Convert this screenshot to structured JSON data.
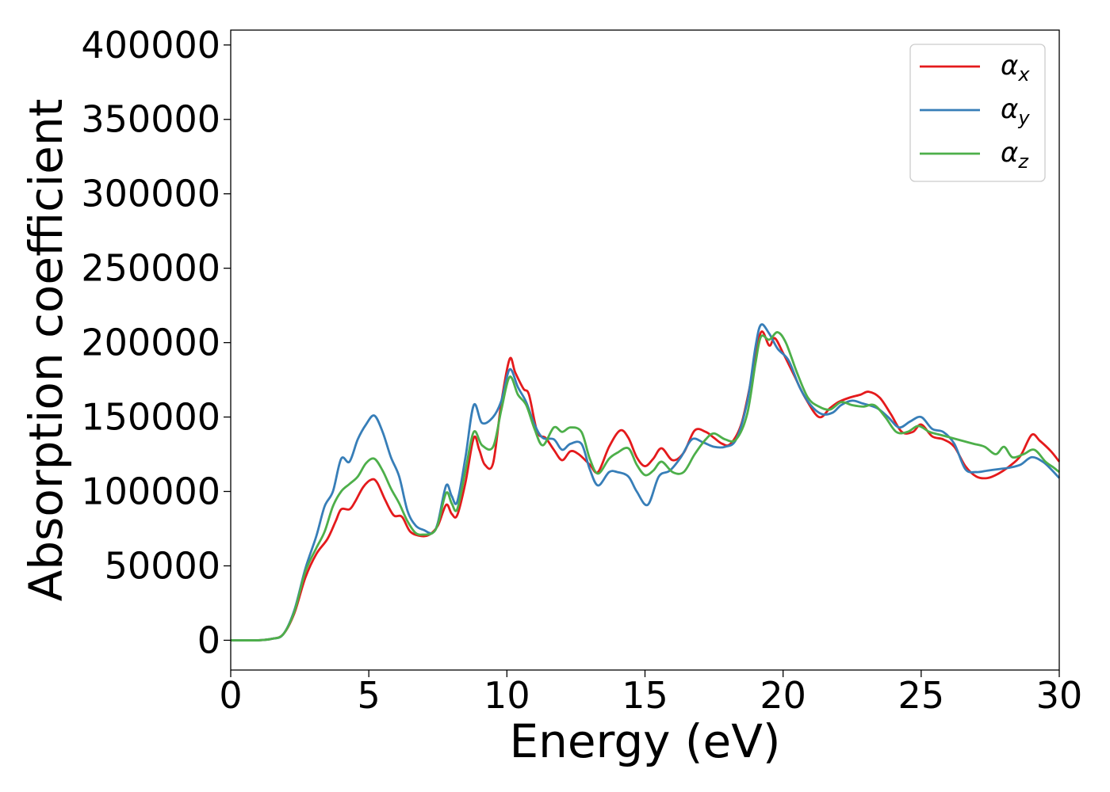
{
  "chart_data": {
    "type": "line",
    "title": "",
    "xlabel": "Energy (eV)",
    "ylabel": "Absorption coefficient",
    "xlim": [
      0,
      30
    ],
    "ylim": [
      -20000,
      410000
    ],
    "xticks": [
      0,
      5,
      10,
      15,
      20,
      25,
      30
    ],
    "xtick_labels": [
      "0",
      "5",
      "10",
      "15",
      "20",
      "25",
      "30"
    ],
    "yticks": [
      0,
      50000,
      100000,
      150000,
      200000,
      250000,
      300000,
      350000,
      400000
    ],
    "ytick_labels": [
      "0",
      "50000",
      "100000",
      "150000",
      "200000",
      "250000",
      "300000",
      "350000",
      "400000"
    ],
    "grid": false,
    "legend_position": "top-right",
    "series": [
      {
        "name": "αx",
        "base": "α",
        "sub": "x",
        "color": "#e41a1c",
        "points": [
          [
            0,
            0
          ],
          [
            1,
            0
          ],
          [
            1.5,
            1000
          ],
          [
            1.9,
            4000
          ],
          [
            2.3,
            18000
          ],
          [
            2.7,
            42000
          ],
          [
            3.1,
            58000
          ],
          [
            3.5,
            68000
          ],
          [
            3.8,
            80000
          ],
          [
            4.0,
            88000
          ],
          [
            4.3,
            88000
          ],
          [
            4.5,
            93000
          ],
          [
            4.8,
            103000
          ],
          [
            5.1,
            108000
          ],
          [
            5.3,
            106000
          ],
          [
            5.6,
            94000
          ],
          [
            5.9,
            84000
          ],
          [
            6.2,
            83000
          ],
          [
            6.5,
            73000
          ],
          [
            6.9,
            70000
          ],
          [
            7.2,
            71000
          ],
          [
            7.5,
            77000
          ],
          [
            7.8,
            91000
          ],
          [
            8.0,
            85000
          ],
          [
            8.2,
            84000
          ],
          [
            8.5,
            106000
          ],
          [
            8.8,
            136000
          ],
          [
            9.0,
            128000
          ],
          [
            9.2,
            118000
          ],
          [
            9.5,
            119000
          ],
          [
            9.8,
            160000
          ],
          [
            10.1,
            189000
          ],
          [
            10.3,
            180000
          ],
          [
            10.6,
            169000
          ],
          [
            10.8,
            165000
          ],
          [
            11.1,
            140000
          ],
          [
            11.4,
            136000
          ],
          [
            11.7,
            128000
          ],
          [
            12.0,
            121000
          ],
          [
            12.3,
            127000
          ],
          [
            12.6,
            125000
          ],
          [
            13.0,
            118000
          ],
          [
            13.3,
            113000
          ],
          [
            13.7,
            130000
          ],
          [
            14.1,
            141000
          ],
          [
            14.4,
            136000
          ],
          [
            14.7,
            123000
          ],
          [
            15.0,
            117000
          ],
          [
            15.3,
            122000
          ],
          [
            15.6,
            129000
          ],
          [
            16.0,
            121000
          ],
          [
            16.4,
            126000
          ],
          [
            16.8,
            141000
          ],
          [
            17.2,
            140000
          ],
          [
            17.5,
            136000
          ],
          [
            17.8,
            132000
          ],
          [
            18.1,
            132000
          ],
          [
            18.5,
            146000
          ],
          [
            18.9,
            180000
          ],
          [
            19.2,
            207000
          ],
          [
            19.5,
            198000
          ],
          [
            19.7,
            203000
          ],
          [
            20.0,
            193000
          ],
          [
            20.4,
            178000
          ],
          [
            20.8,
            163000
          ],
          [
            21.3,
            150000
          ],
          [
            21.7,
            156000
          ],
          [
            22.0,
            160000
          ],
          [
            22.4,
            163000
          ],
          [
            22.8,
            165000
          ],
          [
            23.1,
            167000
          ],
          [
            23.5,
            163000
          ],
          [
            23.9,
            152000
          ],
          [
            24.3,
            140000
          ],
          [
            24.7,
            140000
          ],
          [
            25.0,
            145000
          ],
          [
            25.4,
            137000
          ],
          [
            25.8,
            135000
          ],
          [
            26.2,
            130000
          ],
          [
            26.6,
            117000
          ],
          [
            27.0,
            110000
          ],
          [
            27.4,
            109000
          ],
          [
            27.8,
            112000
          ],
          [
            28.2,
            117000
          ],
          [
            28.6,
            124000
          ],
          [
            29.0,
            138000
          ],
          [
            29.3,
            134000
          ],
          [
            29.7,
            127000
          ],
          [
            30.0,
            120000
          ]
        ]
      },
      {
        "name": "αy",
        "base": "α",
        "sub": "y",
        "color": "#377eb8",
        "points": [
          [
            0,
            0
          ],
          [
            1,
            0
          ],
          [
            1.5,
            1000
          ],
          [
            1.9,
            4000
          ],
          [
            2.3,
            20000
          ],
          [
            2.7,
            48000
          ],
          [
            3.1,
            70000
          ],
          [
            3.4,
            90000
          ],
          [
            3.7,
            100000
          ],
          [
            4.0,
            122000
          ],
          [
            4.3,
            120000
          ],
          [
            4.6,
            135000
          ],
          [
            4.9,
            145000
          ],
          [
            5.2,
            151000
          ],
          [
            5.5,
            140000
          ],
          [
            5.8,
            123000
          ],
          [
            6.1,
            110000
          ],
          [
            6.4,
            87000
          ],
          [
            6.7,
            77000
          ],
          [
            7.0,
            74000
          ],
          [
            7.3,
            72000
          ],
          [
            7.5,
            79000
          ],
          [
            7.8,
            104000
          ],
          [
            8.0,
            97000
          ],
          [
            8.2,
            93000
          ],
          [
            8.5,
            123000
          ],
          [
            8.8,
            158000
          ],
          [
            9.1,
            146000
          ],
          [
            9.5,
            150000
          ],
          [
            9.8,
            161000
          ],
          [
            10.1,
            182000
          ],
          [
            10.4,
            170000
          ],
          [
            10.7,
            160000
          ],
          [
            11.0,
            145000
          ],
          [
            11.3,
            136000
          ],
          [
            11.7,
            135000
          ],
          [
            12.0,
            128000
          ],
          [
            12.3,
            132000
          ],
          [
            12.7,
            132000
          ],
          [
            13.0,
            115000
          ],
          [
            13.3,
            104000
          ],
          [
            13.7,
            113000
          ],
          [
            14.0,
            113000
          ],
          [
            14.4,
            110000
          ],
          [
            14.7,
            100000
          ],
          [
            15.1,
            91000
          ],
          [
            15.5,
            110000
          ],
          [
            15.9,
            114000
          ],
          [
            16.3,
            123000
          ],
          [
            16.7,
            135000
          ],
          [
            17.1,
            133000
          ],
          [
            17.5,
            130000
          ],
          [
            17.9,
            130000
          ],
          [
            18.3,
            135000
          ],
          [
            18.7,
            160000
          ],
          [
            19.0,
            197000
          ],
          [
            19.2,
            212000
          ],
          [
            19.5,
            206000
          ],
          [
            19.8,
            196000
          ],
          [
            20.2,
            188000
          ],
          [
            20.6,
            170000
          ],
          [
            21.0,
            158000
          ],
          [
            21.4,
            152000
          ],
          [
            21.8,
            153000
          ],
          [
            22.1,
            158000
          ],
          [
            22.5,
            161000
          ],
          [
            22.9,
            159000
          ],
          [
            23.4,
            156000
          ],
          [
            23.8,
            150000
          ],
          [
            24.2,
            143000
          ],
          [
            24.6,
            147000
          ],
          [
            25.0,
            150000
          ],
          [
            25.4,
            142000
          ],
          [
            25.8,
            140000
          ],
          [
            26.2,
            132000
          ],
          [
            26.6,
            115000
          ],
          [
            27.0,
            113000
          ],
          [
            27.4,
            114000
          ],
          [
            27.8,
            115000
          ],
          [
            28.2,
            116000
          ],
          [
            28.6,
            118000
          ],
          [
            29.0,
            123000
          ],
          [
            29.4,
            120000
          ],
          [
            29.7,
            115000
          ],
          [
            30.0,
            109000
          ]
        ]
      },
      {
        "name": "αz",
        "base": "α",
        "sub": "z",
        "color": "#4daf4a",
        "points": [
          [
            0,
            0
          ],
          [
            1,
            0
          ],
          [
            1.5,
            1000
          ],
          [
            1.9,
            4000
          ],
          [
            2.3,
            19000
          ],
          [
            2.7,
            46000
          ],
          [
            3.1,
            62000
          ],
          [
            3.4,
            73000
          ],
          [
            3.7,
            90000
          ],
          [
            4.0,
            100000
          ],
          [
            4.3,
            105000
          ],
          [
            4.6,
            110000
          ],
          [
            4.9,
            119000
          ],
          [
            5.2,
            122000
          ],
          [
            5.5,
            114000
          ],
          [
            5.8,
            102000
          ],
          [
            6.1,
            92000
          ],
          [
            6.4,
            80000
          ],
          [
            6.7,
            72000
          ],
          [
            7.0,
            71000
          ],
          [
            7.3,
            72000
          ],
          [
            7.5,
            78000
          ],
          [
            7.8,
            99000
          ],
          [
            8.0,
            92000
          ],
          [
            8.2,
            88000
          ],
          [
            8.5,
            114000
          ],
          [
            8.8,
            140000
          ],
          [
            9.1,
            131000
          ],
          [
            9.5,
            130000
          ],
          [
            9.8,
            155000
          ],
          [
            10.1,
            177000
          ],
          [
            10.4,
            165000
          ],
          [
            10.7,
            158000
          ],
          [
            11.0,
            142000
          ],
          [
            11.3,
            131000
          ],
          [
            11.7,
            143000
          ],
          [
            12.0,
            140000
          ],
          [
            12.3,
            143000
          ],
          [
            12.7,
            140000
          ],
          [
            13.0,
            122000
          ],
          [
            13.3,
            112000
          ],
          [
            13.7,
            122000
          ],
          [
            14.0,
            126000
          ],
          [
            14.4,
            129000
          ],
          [
            14.7,
            118000
          ],
          [
            15.0,
            111000
          ],
          [
            15.3,
            114000
          ],
          [
            15.6,
            120000
          ],
          [
            16.0,
            113000
          ],
          [
            16.4,
            113000
          ],
          [
            16.8,
            125000
          ],
          [
            17.2,
            135000
          ],
          [
            17.5,
            139000
          ],
          [
            17.9,
            135000
          ],
          [
            18.3,
            135000
          ],
          [
            18.7,
            152000
          ],
          [
            19.0,
            186000
          ],
          [
            19.2,
            204000
          ],
          [
            19.5,
            202000
          ],
          [
            19.8,
            207000
          ],
          [
            20.1,
            200000
          ],
          [
            20.5,
            180000
          ],
          [
            20.9,
            163000
          ],
          [
            21.3,
            157000
          ],
          [
            21.7,
            155000
          ],
          [
            22.1,
            160000
          ],
          [
            22.5,
            158000
          ],
          [
            22.9,
            157000
          ],
          [
            23.3,
            158000
          ],
          [
            23.7,
            150000
          ],
          [
            24.1,
            140000
          ],
          [
            24.5,
            140000
          ],
          [
            24.9,
            144000
          ],
          [
            25.3,
            140000
          ],
          [
            25.7,
            138000
          ],
          [
            26.1,
            136000
          ],
          [
            26.5,
            134000
          ],
          [
            26.9,
            132000
          ],
          [
            27.3,
            130000
          ],
          [
            27.7,
            125000
          ],
          [
            28.0,
            130000
          ],
          [
            28.3,
            123000
          ],
          [
            28.7,
            125000
          ],
          [
            29.1,
            128000
          ],
          [
            29.5,
            120000
          ],
          [
            29.8,
            116000
          ],
          [
            30.0,
            113000
          ]
        ]
      }
    ]
  }
}
